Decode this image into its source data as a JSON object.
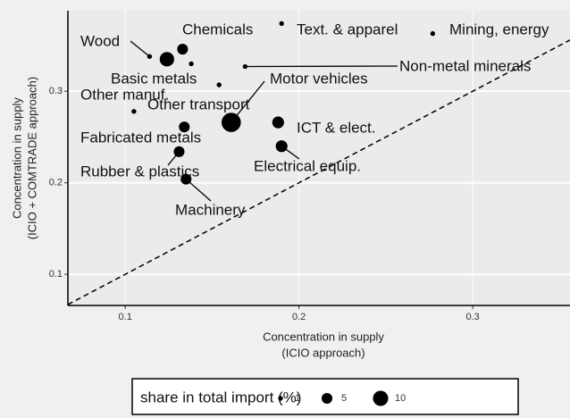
{
  "chart_data": {
    "type": "scatter",
    "x_label": [
      "Concentration in supply",
      "(ICIO approach)"
    ],
    "y_label": [
      "Concentration in supply",
      "(ICIO + COMTRADE approach)"
    ],
    "labels": [
      "Wood",
      "Chemicals",
      "Basic metals",
      null,
      "Text. & apparel",
      "Mining, energy",
      "Non-metal minerals",
      "Other transport",
      "Other manuf.",
      "Motor vehicles",
      "ICT & elect.",
      "Fabricated metals",
      "Rubber & plastics",
      "Electrical equip.",
      "Machinery"
    ],
    "x": [
      0.114,
      0.133,
      0.124,
      0.138,
      0.19,
      0.277,
      0.169,
      0.154,
      0.105,
      0.161,
      0.188,
      0.134,
      0.131,
      0.19,
      0.135
    ],
    "y": [
      0.338,
      0.346,
      0.335,
      0.33,
      0.374,
      0.363,
      0.327,
      0.307,
      0.278,
      0.266,
      0.266,
      0.261,
      0.234,
      0.24,
      0.204
    ],
    "sizes": [
      1,
      5,
      9,
      1,
      1,
      1,
      1,
      1,
      1,
      16,
      6,
      5,
      5,
      6,
      5
    ],
    "color": "#000000",
    "xlim": [
      0.067,
      0.356
    ],
    "ylim": [
      0.066,
      0.388
    ],
    "xticks": [
      0.1,
      0.2,
      0.3
    ],
    "yticks": [
      0.1,
      0.2,
      0.3
    ],
    "grid": true,
    "diagonal": true,
    "size_legend": {
      "title": "share in total import (%)",
      "values": [
        1,
        5,
        10
      ]
    }
  }
}
